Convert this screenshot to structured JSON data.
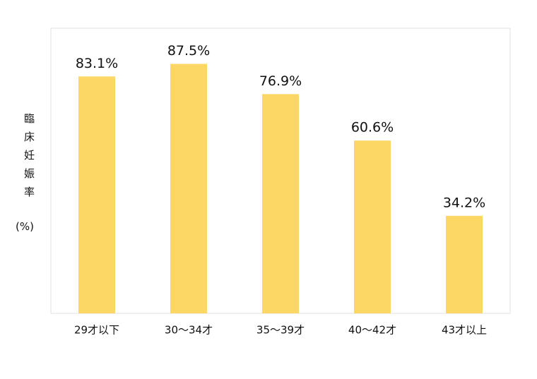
{
  "chart_data": {
    "type": "bar",
    "ylabel": "臨床妊娠率",
    "ylabel_unit": "(%)",
    "categories": [
      "29才以下",
      "30～34才",
      "35～39才",
      "40～42才",
      "43才以上"
    ],
    "values": [
      83.1,
      87.5,
      76.9,
      60.6,
      34.2
    ],
    "value_labels": [
      "83.1%",
      "87.5%",
      "76.9%",
      "60.6%",
      "34.2%"
    ],
    "color": "#fdd766",
    "ylim": [
      0,
      100
    ]
  }
}
